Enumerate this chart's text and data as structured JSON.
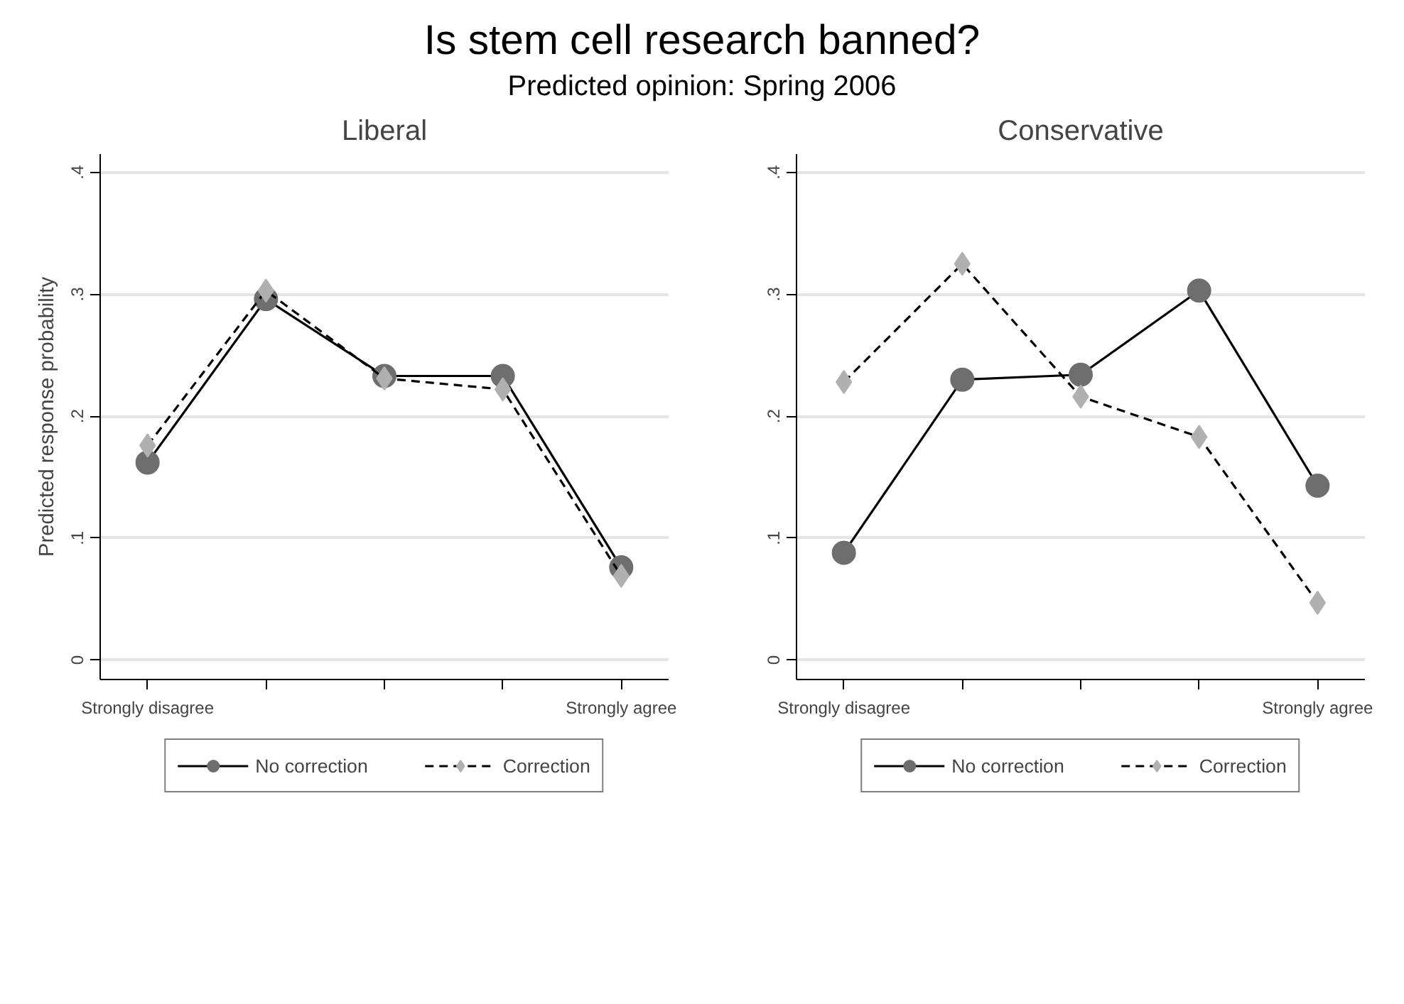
{
  "chart_data": [
    {
      "type": "line",
      "title": "Liberal",
      "ylabel": "Predicted response probability",
      "annotations": [
        "Is stem cell research banned?",
        "Predicted opinion: Spring 2006"
      ],
      "categories": [
        "Strongly disagree",
        null,
        null,
        null,
        "Strongly agree"
      ],
      "series": [
        {
          "name": "No correction",
          "color": "#6e6e6e",
          "marker": "circle",
          "line_style": "solid",
          "values": [
            0.162,
            0.296,
            0.233,
            0.233,
            0.076
          ]
        },
        {
          "name": "Correction",
          "color": "#b0b0b0",
          "marker": "diamond",
          "line_style": "dashed",
          "values": [
            0.176,
            0.303,
            0.231,
            0.222,
            0.069
          ]
        }
      ],
      "ylim": [
        -0.016,
        0.415
      ],
      "yticks": [
        0,
        {
          "value": 0.1,
          "label": ".1"
        },
        {
          "value": 0.2,
          "label": ".2"
        },
        {
          "value": 0.3,
          "label": ".3"
        },
        {
          "value": 0.4,
          "label": ".4"
        }
      ],
      "grid": "y",
      "legend": "bottom"
    },
    {
      "type": "line",
      "title": "Conservative",
      "categories": [
        "Strongly disagree",
        null,
        null,
        null,
        "Strongly agree"
      ],
      "series": [
        {
          "name": "No correction",
          "color": "#6e6e6e",
          "marker": "circle",
          "line_style": "solid",
          "values": [
            0.088,
            0.23,
            0.234,
            0.303,
            0.143
          ]
        },
        {
          "name": "Correction",
          "color": "#b0b0b0",
          "marker": "diamond",
          "line_style": "dashed",
          "values": [
            0.228,
            0.325,
            0.216,
            0.183,
            0.047
          ]
        }
      ],
      "ylim": [
        -0.016,
        0.415
      ],
      "yticks": [
        0,
        {
          "value": 0.1,
          "label": ".1"
        },
        {
          "value": 0.2,
          "label": ".2"
        },
        {
          "value": 0.3,
          "label": ".3"
        },
        {
          "value": 0.4,
          "label": ".4"
        }
      ],
      "grid": "y",
      "legend": "bottom"
    }
  ]
}
